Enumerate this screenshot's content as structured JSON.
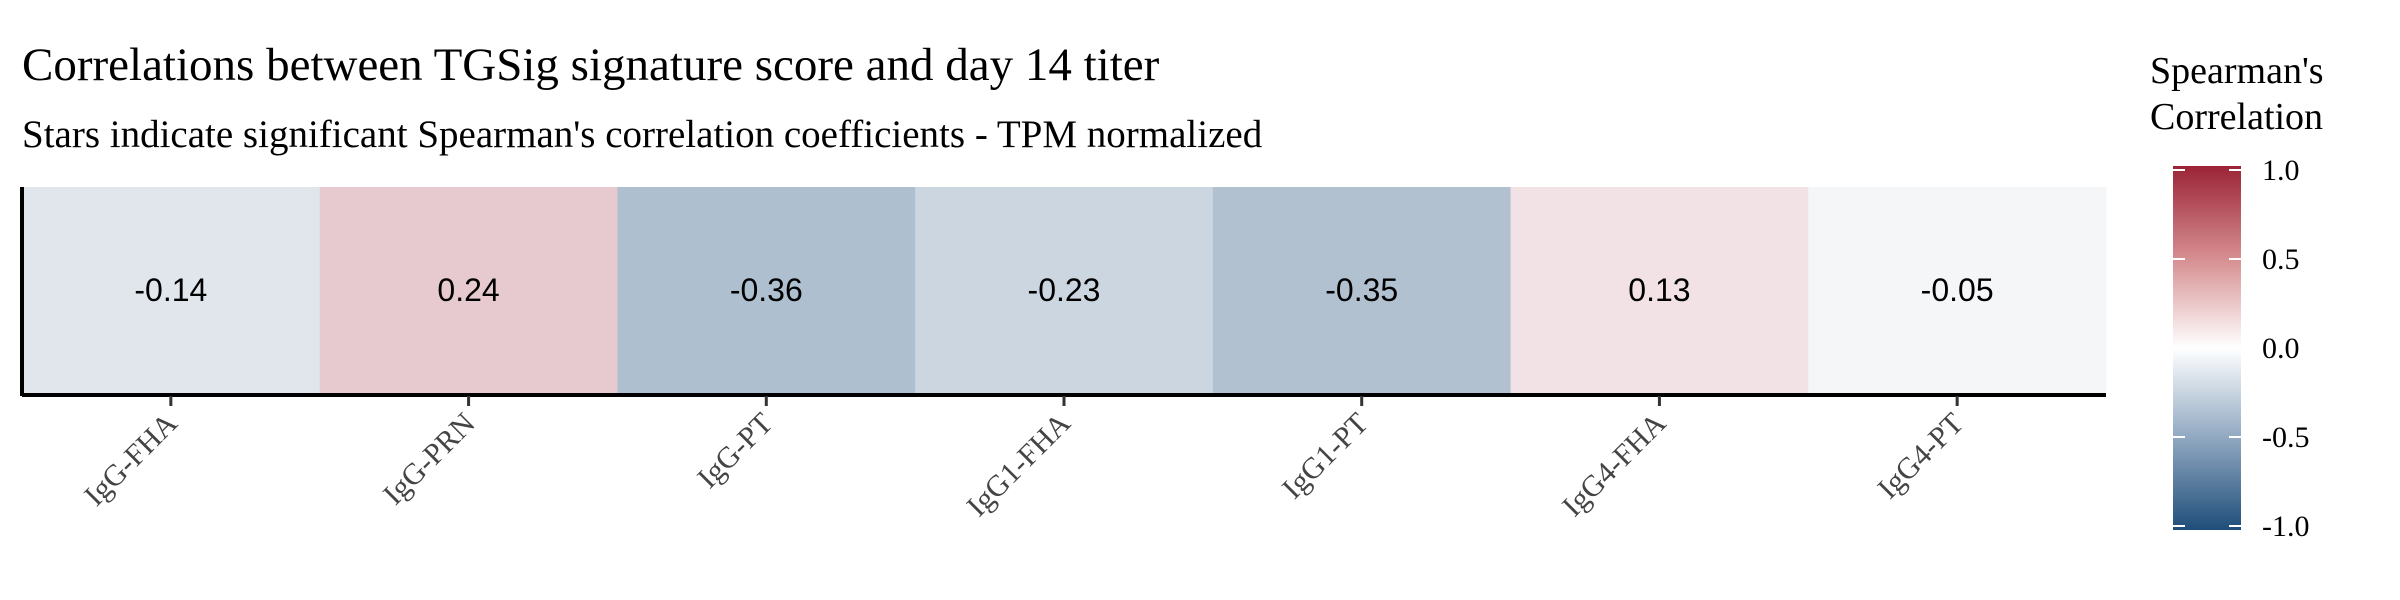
{
  "chart_data": {
    "type": "heatmap",
    "title": "Correlations between TGSig signature score and day 14 titer",
    "subtitle": "Stars indicate significant Spearman's correlation coefficients - TPM normalized",
    "categories": [
      "IgG-FHA",
      "IgG-PRN",
      "IgG-PT",
      "IgG1-FHA",
      "IgG1-PT",
      "IgG4-FHA",
      "IgG4-PT"
    ],
    "values": [
      -0.14,
      0.24,
      -0.36,
      -0.23,
      -0.35,
      0.13,
      -0.05
    ],
    "value_labels": [
      "-0.14",
      "0.24",
      "-0.36",
      "-0.23",
      "-0.35",
      "0.13",
      "-0.05"
    ],
    "legend": {
      "title_line1": "Spearman's",
      "title_line2": "Correlation",
      "range": [
        -1.0,
        1.0
      ],
      "ticks": [
        1.0,
        0.5,
        0.0,
        -0.5,
        -1.0
      ],
      "tick_labels": [
        "1.0",
        "0.5",
        "0.0",
        "-0.5",
        "-1.0"
      ],
      "placement": "right"
    },
    "colors": {
      "low": "#1f4e7a",
      "mid": "#ffffff",
      "high": "#9b2335"
    }
  }
}
